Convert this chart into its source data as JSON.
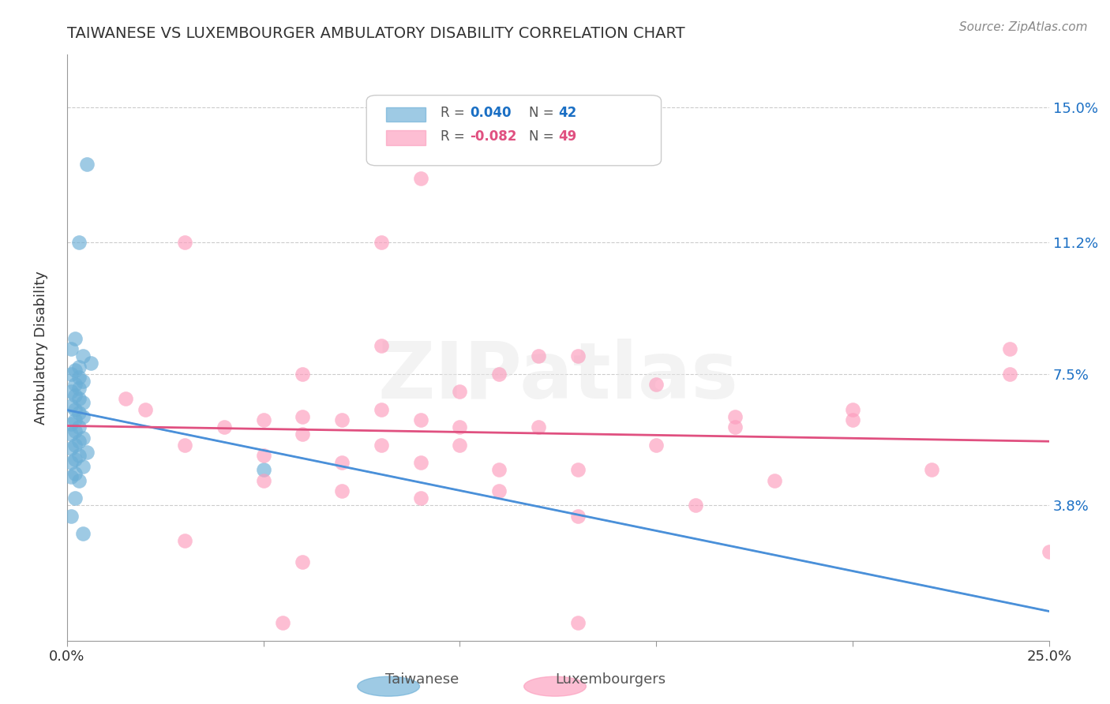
{
  "title": "TAIWANESE VS LUXEMBOURGER AMBULATORY DISABILITY CORRELATION CHART",
  "source": "Source: ZipAtlas.com",
  "ylabel": "Ambulatory Disability",
  "xlabel_ticks": [
    "0.0%",
    "25.0%"
  ],
  "ylabel_ticks": [
    "3.8%",
    "7.5%",
    "11.2%",
    "15.0%"
  ],
  "xlim": [
    0.0,
    0.25
  ],
  "ylim": [
    0.0,
    0.165
  ],
  "ytick_vals": [
    0.038,
    0.075,
    0.112,
    0.15
  ],
  "xtick_vals": [
    0.0,
    0.05,
    0.1,
    0.15,
    0.2,
    0.25
  ],
  "taiwanese_x": [
    0.005,
    0.003,
    0.002,
    0.001,
    0.004,
    0.006,
    0.003,
    0.002,
    0.001,
    0.003,
    0.004,
    0.002,
    0.003,
    0.001,
    0.002,
    0.003,
    0.004,
    0.001,
    0.002,
    0.003,
    0.004,
    0.002,
    0.001,
    0.003,
    0.002,
    0.001,
    0.004,
    0.003,
    0.002,
    0.001,
    0.005,
    0.003,
    0.002,
    0.001,
    0.004,
    0.05,
    0.002,
    0.001,
    0.003,
    0.002,
    0.001,
    0.004
  ],
  "taiwanese_y": [
    0.134,
    0.112,
    0.085,
    0.082,
    0.08,
    0.078,
    0.077,
    0.076,
    0.075,
    0.074,
    0.073,
    0.072,
    0.071,
    0.07,
    0.069,
    0.068,
    0.067,
    0.066,
    0.065,
    0.064,
    0.063,
    0.062,
    0.061,
    0.06,
    0.059,
    0.058,
    0.057,
    0.056,
    0.055,
    0.054,
    0.053,
    0.052,
    0.051,
    0.05,
    0.049,
    0.048,
    0.047,
    0.046,
    0.045,
    0.04,
    0.035,
    0.03
  ],
  "luxembourger_x": [
    0.03,
    0.08,
    0.09,
    0.12,
    0.13,
    0.06,
    0.08,
    0.15,
    0.17,
    0.2,
    0.24,
    0.02,
    0.05,
    0.07,
    0.1,
    0.11,
    0.06,
    0.08,
    0.09,
    0.1,
    0.12,
    0.04,
    0.06,
    0.08,
    0.1,
    0.03,
    0.05,
    0.07,
    0.09,
    0.11,
    0.13,
    0.15,
    0.17,
    0.2,
    0.22,
    0.24,
    0.05,
    0.07,
    0.09,
    0.11,
    0.13,
    0.16,
    0.18,
    0.03,
    0.06,
    0.25,
    0.015,
    0.055,
    0.13
  ],
  "luxembourger_y": [
    0.112,
    0.112,
    0.13,
    0.08,
    0.08,
    0.075,
    0.083,
    0.072,
    0.063,
    0.062,
    0.075,
    0.065,
    0.062,
    0.062,
    0.07,
    0.075,
    0.063,
    0.065,
    0.062,
    0.06,
    0.06,
    0.06,
    0.058,
    0.055,
    0.055,
    0.055,
    0.052,
    0.05,
    0.05,
    0.048,
    0.048,
    0.055,
    0.06,
    0.065,
    0.048,
    0.082,
    0.045,
    0.042,
    0.04,
    0.042,
    0.035,
    0.038,
    0.045,
    0.028,
    0.022,
    0.025,
    0.068,
    0.005,
    0.005
  ],
  "legend_R_taiwanese": "R =  0.040",
  "legend_N_taiwanese": "N = 42",
  "legend_R_luxembourger": "R = -0.082",
  "legend_N_luxembourger": "N = 49",
  "color_taiwanese": "#6baed6",
  "color_luxembourger": "#fc9cbc",
  "color_line_taiwanese": "#4a90d9",
  "color_line_luxembourger": "#e05080",
  "color_legend_R_taiwanese": "#1a6fc4",
  "color_legend_R_luxembourger": "#e05080",
  "color_legend_N": "#1a6fc4",
  "color_legend_N_lux": "#e05080",
  "watermark": "ZIPatlas",
  "background_color": "#ffffff",
  "grid_color": "#cccccc"
}
